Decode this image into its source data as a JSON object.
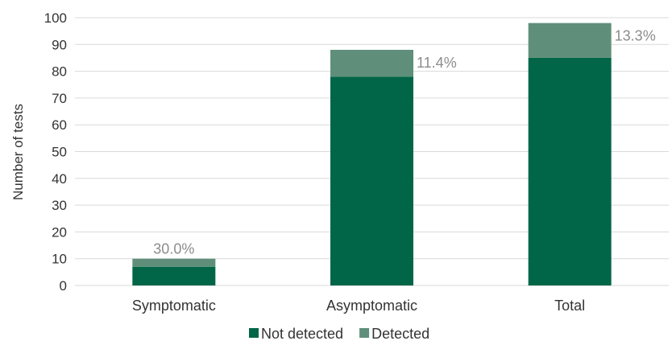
{
  "chart_data": {
    "type": "bar",
    "stacked": true,
    "categories": [
      "Symptomatic",
      "Asymptomatic",
      "Total"
    ],
    "series": [
      {
        "name": "Not detected",
        "values": [
          7,
          78,
          85
        ],
        "color": "#006647"
      },
      {
        "name": "Detected",
        "values": [
          3,
          10,
          13
        ],
        "color": "#5f8f7a"
      }
    ],
    "data_labels": [
      "30.0%",
      "11.4%",
      "13.3%"
    ],
    "ylabel": "Number of tests",
    "xlabel": "",
    "ylim": [
      0,
      100
    ],
    "yticks": [
      0,
      10,
      20,
      30,
      40,
      50,
      60,
      70,
      80,
      90,
      100
    ],
    "grid": true,
    "legend_position": "bottom"
  }
}
